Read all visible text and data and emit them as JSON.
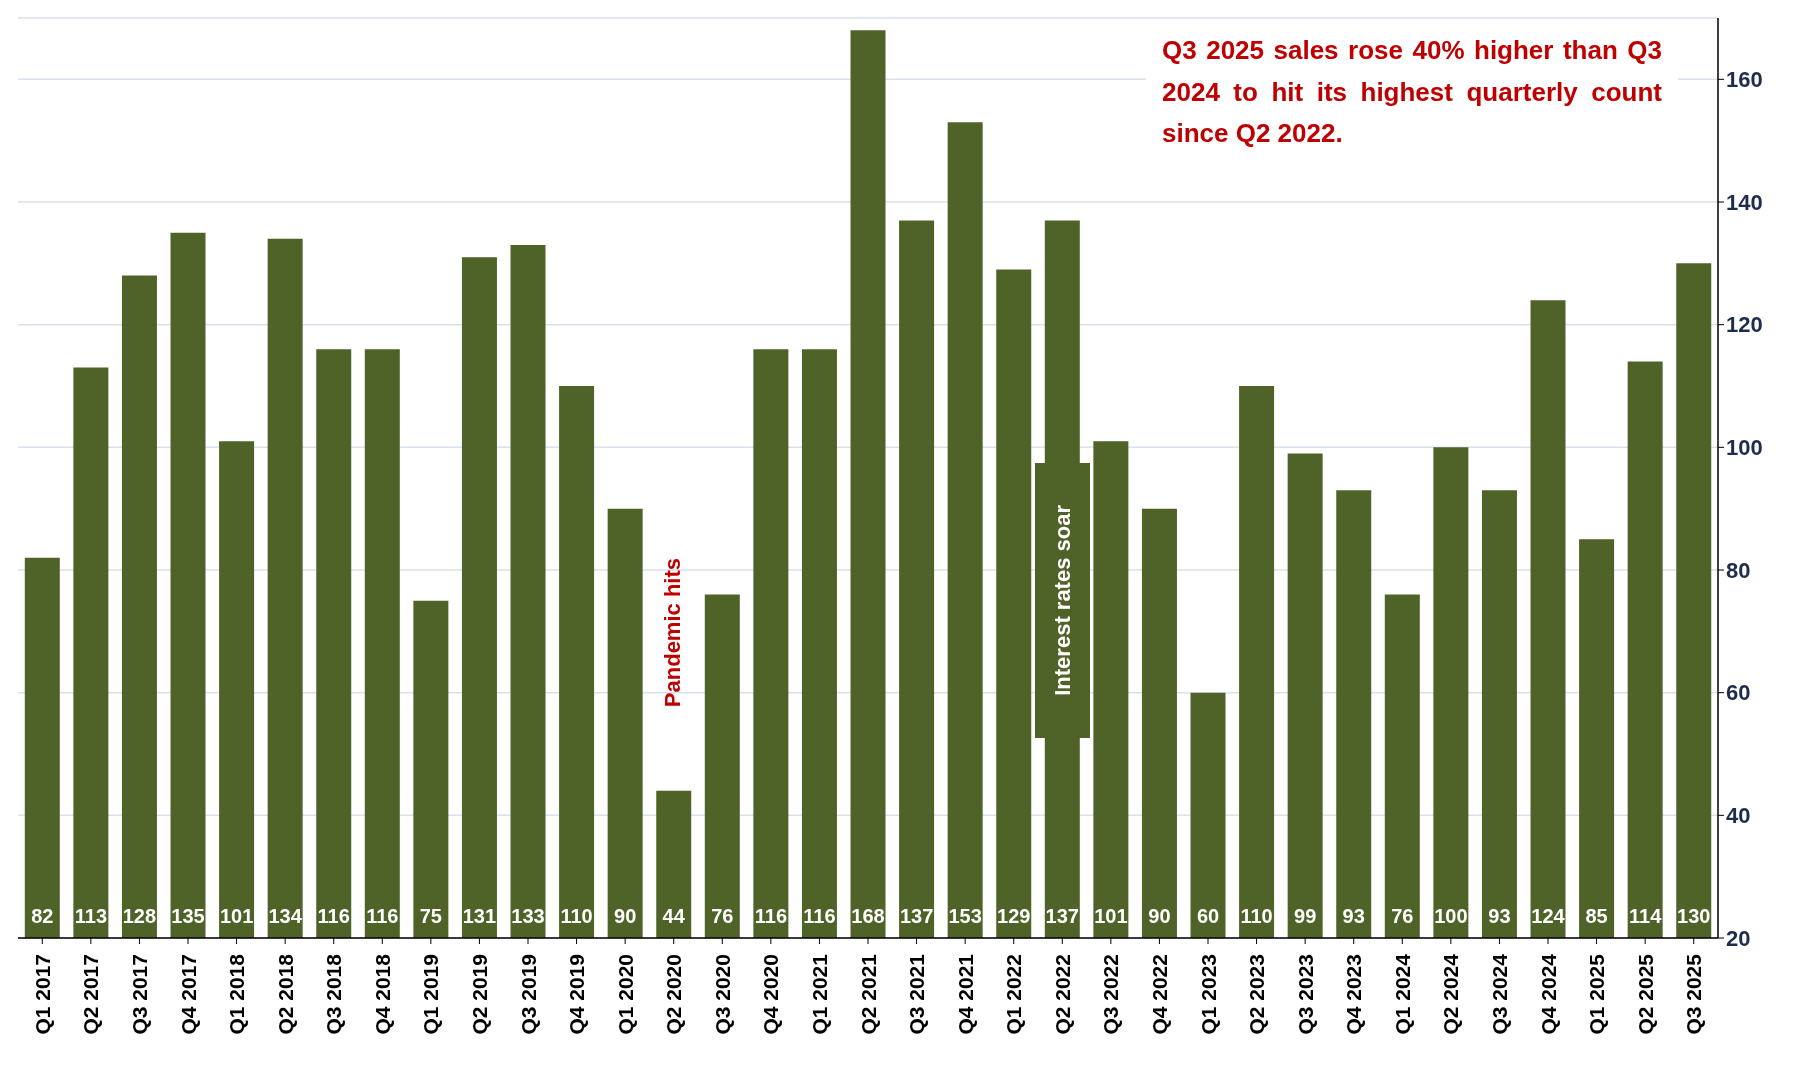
{
  "chart_data": {
    "type": "bar",
    "categories": [
      "Q1 2017",
      "Q2 2017",
      "Q3 2017",
      "Q4 2017",
      "Q1 2018",
      "Q2 2018",
      "Q3 2018",
      "Q4 2018",
      "Q1 2019",
      "Q2 2019",
      "Q3 2019",
      "Q4 2019",
      "Q1 2020",
      "Q2 2020",
      "Q3 2020",
      "Q4 2020",
      "Q1 2021",
      "Q2 2021",
      "Q3 2021",
      "Q4 2021",
      "Q1 2022",
      "Q2 2022",
      "Q3 2022",
      "Q4 2022",
      "Q1 2023",
      "Q2 2023",
      "Q3 2023",
      "Q4 2023",
      "Q1 2024",
      "Q2 2024",
      "Q3 2024",
      "Q4 2024",
      "Q1 2025",
      "Q2 2025",
      "Q3 2025"
    ],
    "values": [
      82,
      113,
      128,
      135,
      101,
      134,
      116,
      116,
      75,
      131,
      133,
      110,
      90,
      44,
      76,
      116,
      116,
      168,
      137,
      153,
      129,
      137,
      101,
      90,
      60,
      110,
      99,
      93,
      76,
      100,
      93,
      124,
      85,
      114,
      130
    ],
    "color": "#4f6228",
    "ylim": [
      20,
      170
    ],
    "yticks": [
      20,
      40,
      60,
      80,
      100,
      120,
      140,
      160
    ],
    "grid": "y",
    "data_labels": true,
    "legend": false,
    "annotations": [
      "Q3 2025 sales rose 40% higher than Q3 2024 to hit its highest quarterly count since Q2 2022.",
      "Pandemic hits",
      "Interest rates soar"
    ]
  }
}
